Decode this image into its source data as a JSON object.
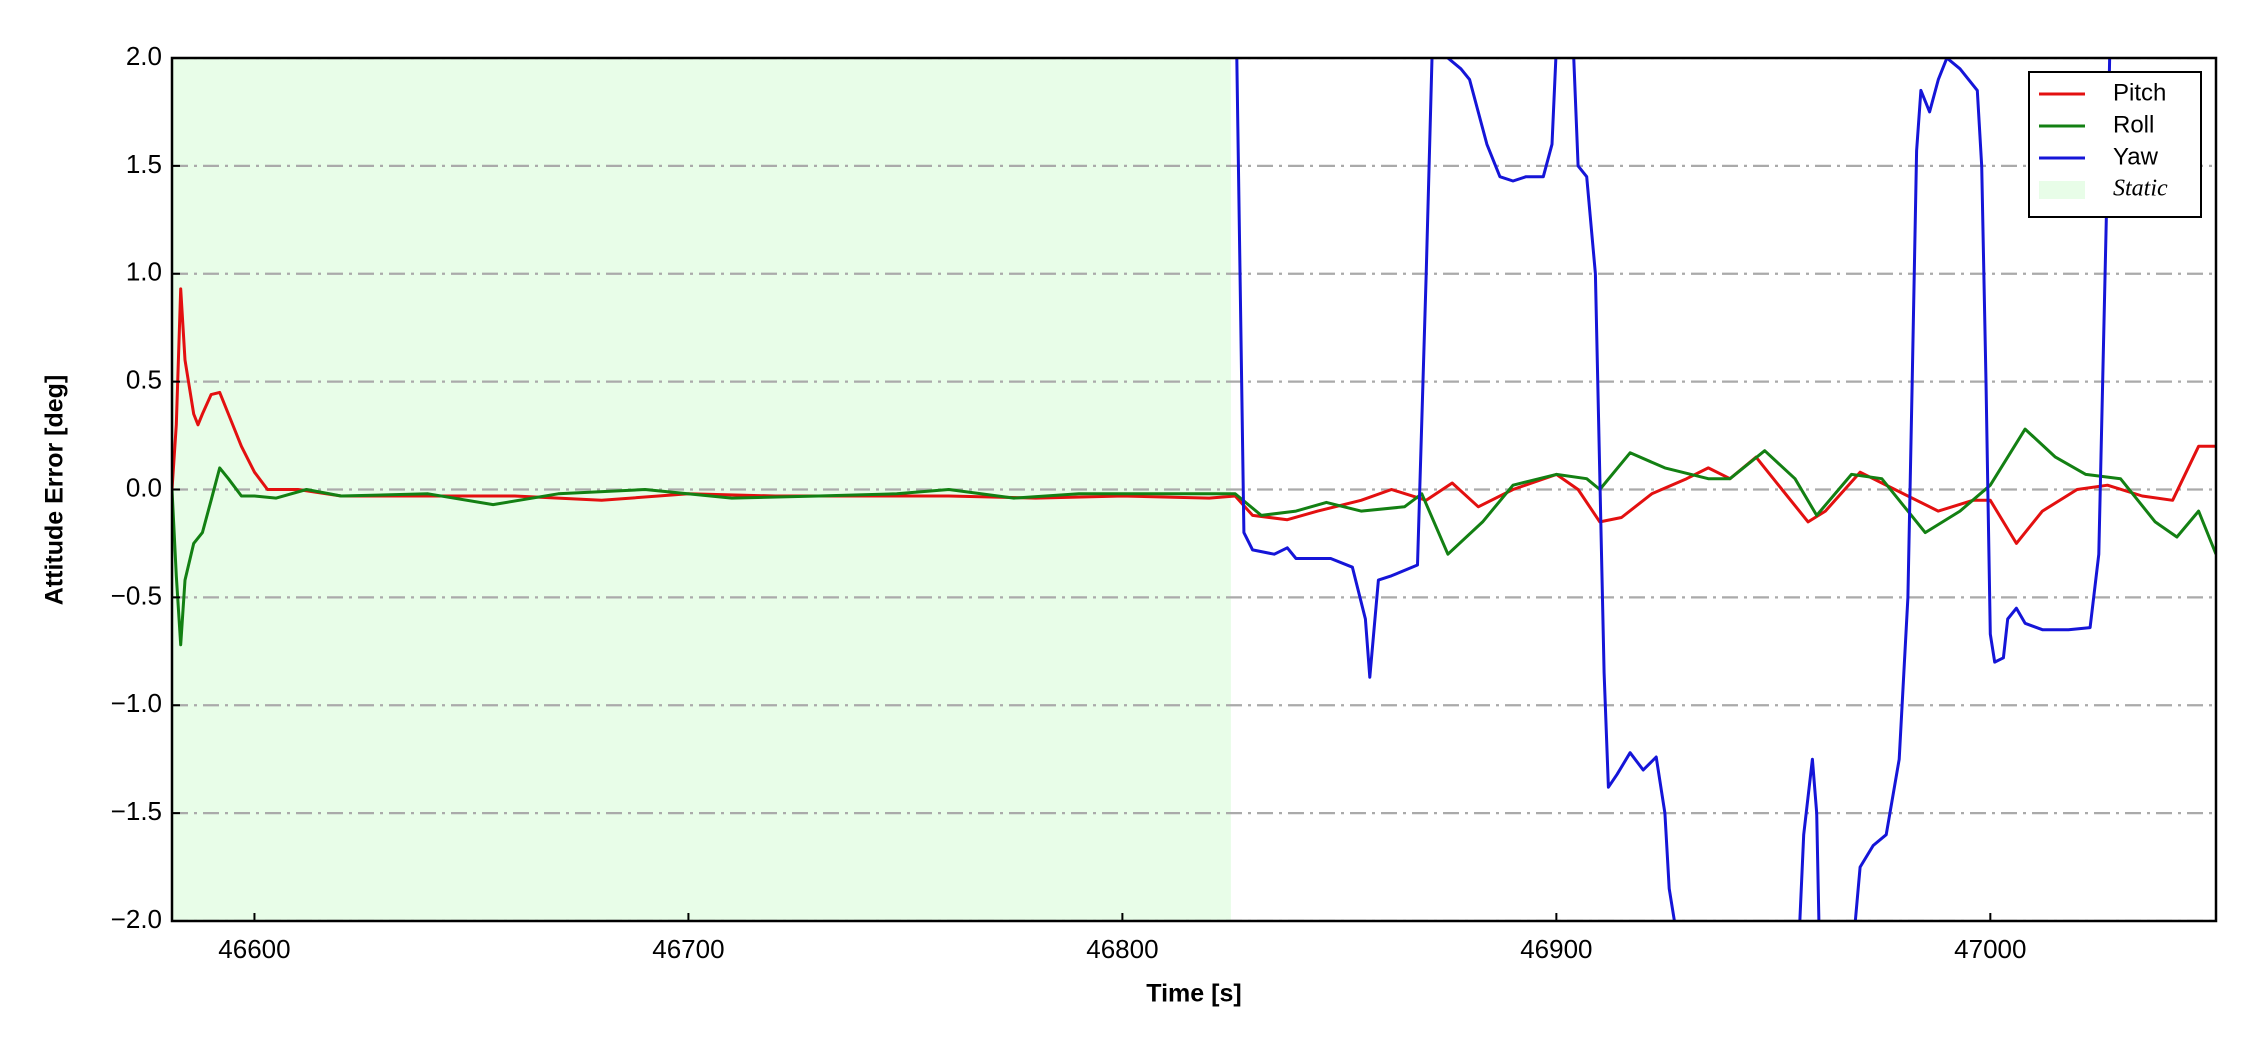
{
  "chart_data": {
    "type": "line",
    "xlabel": "Time [s]",
    "ylabel": "Attitude Error [deg]",
    "xlim": [
      46581,
      47052
    ],
    "ylim": [
      -2,
      2
    ],
    "xticks": [
      46600,
      46700,
      46800,
      46900,
      47000
    ],
    "yticks": [
      {
        "value": -2,
        "label": "−2.0"
      },
      {
        "value": -1.5,
        "label": "−1.5"
      },
      {
        "value": -1,
        "label": "−1.0"
      },
      {
        "value": -0.5,
        "label": "−0.5"
      },
      {
        "value": 0,
        "label": "0.0"
      },
      {
        "value": 0.5,
        "label": "0.5"
      },
      {
        "value": 1,
        "label": "1.0"
      },
      {
        "value": 1.5,
        "label": "1.5"
      },
      {
        "value": 2,
        "label": "2.0"
      }
    ],
    "grid": true,
    "legend": "upper right",
    "static": {
      "label": "Static",
      "range": [
        46581,
        46825
      ],
      "color": "#e8fde8"
    },
    "series": [
      {
        "name": "Pitch",
        "color": "#e31010",
        "x": [
          46581,
          46582,
          46583,
          46584,
          46586,
          46587,
          46588,
          46590,
          46592,
          46594,
          46597,
          46600,
          46603,
          46610,
          46620,
          46640,
          46660,
          46680,
          46700,
          46720,
          46740,
          46760,
          46780,
          46800,
          46820,
          46826,
          46830,
          46838,
          46845,
          46855,
          46862,
          46870,
          46876,
          46882,
          46890,
          46900,
          46905,
          46910,
          46915,
          46922,
          46930,
          46935,
          46940,
          46946,
          46952,
          46958,
          46962,
          46970,
          46978,
          46988,
          46996,
          47000,
          47006,
          47012,
          47020,
          47027,
          47035,
          47042,
          47048,
          47052
        ],
        "values": [
          0,
          0.3,
          0.93,
          0.6,
          0.35,
          0.3,
          0.35,
          0.44,
          0.45,
          0.35,
          0.2,
          0.08,
          0,
          0,
          -0.03,
          -0.03,
          -0.03,
          -0.05,
          -0.02,
          -0.03,
          -0.03,
          -0.03,
          -0.04,
          -0.03,
          -0.04,
          -0.03,
          -0.12,
          -0.14,
          -0.1,
          -0.05,
          0,
          -0.05,
          0.03,
          -0.08,
          0,
          0.07,
          0,
          -0.15,
          -0.13,
          -0.02,
          0.05,
          0.1,
          0.05,
          0.15,
          0,
          -0.15,
          -0.1,
          0.08,
          0,
          -0.1,
          -0.05,
          -0.05,
          -0.25,
          -0.1,
          0,
          0.02,
          -0.03,
          -0.05,
          0.2,
          0.2
        ]
      },
      {
        "name": "Roll",
        "color": "#138013",
        "x": [
          46581,
          46582,
          46583,
          46584,
          46586,
          46588,
          46590,
          46592,
          46594,
          46597,
          46600,
          46605,
          46612,
          46620,
          46640,
          46655,
          46670,
          46690,
          46710,
          46730,
          46748,
          46760,
          46775,
          46790,
          46805,
          46826,
          46832,
          46840,
          46847,
          46855,
          46865,
          46869,
          46875,
          46883,
          46890,
          46900,
          46907,
          46910,
          46917,
          46925,
          46935,
          46940,
          46948,
          46955,
          46960,
          46968,
          46975,
          46985,
          46993,
          47000,
          47008,
          47015,
          47022,
          47030,
          47038,
          47043,
          47048,
          47052
        ],
        "values": [
          0,
          -0.4,
          -0.72,
          -0.42,
          -0.25,
          -0.2,
          -0.05,
          0.1,
          0.05,
          -0.03,
          -0.03,
          -0.04,
          0,
          -0.03,
          -0.02,
          -0.07,
          -0.02,
          0,
          -0.04,
          -0.03,
          -0.02,
          0,
          -0.04,
          -0.02,
          -0.02,
          -0.02,
          -0.12,
          -0.1,
          -0.06,
          -0.1,
          -0.08,
          -0.02,
          -0.3,
          -0.15,
          0.02,
          0.07,
          0.05,
          0,
          0.17,
          0.1,
          0.05,
          0.05,
          0.18,
          0.05,
          -0.12,
          0.07,
          0.05,
          -0.2,
          -0.1,
          0.02,
          0.28,
          0.15,
          0.07,
          0.05,
          -0.15,
          -0.22,
          -0.1,
          -0.3
        ]
      },
      {
        "name": "Yaw",
        "color": "#1515d8",
        "x": [
          46826,
          46828,
          46830,
          46835,
          46838,
          46840,
          46848,
          46853,
          46856,
          46857,
          46859,
          46862,
          46868,
          46870,
          46872,
          46875,
          46878,
          46880,
          46884,
          46887,
          46890,
          46893,
          46897,
          46899,
          46901,
          46903,
          46905,
          46907,
          46909,
          46911,
          46912,
          46914,
          46917,
          46920,
          46923,
          46925,
          46926,
          46928,
          46930,
          46955,
          46957,
          46959,
          46960,
          46961,
          46968,
          46970,
          46973,
          46976,
          46979,
          46981,
          46982,
          46983,
          46984,
          46986,
          46988,
          46990,
          46993,
          46997,
          46998,
          46999,
          47000,
          47001,
          47003,
          47004,
          47006,
          47008,
          47012,
          47018,
          47023,
          47025,
          47027,
          47028
        ],
        "values": [
          2.5,
          -0.2,
          -0.28,
          -0.3,
          -0.27,
          -0.32,
          -0.32,
          -0.36,
          -0.6,
          -0.87,
          -0.42,
          -0.4,
          -0.35,
          1.0,
          2.5,
          2.0,
          1.95,
          1.9,
          1.6,
          1.45,
          1.43,
          1.45,
          1.45,
          1.6,
          2.5,
          2.5,
          1.5,
          1.45,
          1.0,
          -0.85,
          -1.38,
          -1.32,
          -1.22,
          -1.3,
          -1.24,
          -1.5,
          -1.85,
          -2.1,
          -2.5,
          -2.5,
          -1.6,
          -1.25,
          -1.5,
          -2.5,
          -2.2,
          -1.75,
          -1.65,
          -1.6,
          -1.25,
          -0.5,
          0.5,
          1.57,
          1.85,
          1.75,
          1.9,
          2.0,
          1.95,
          1.85,
          1.5,
          0.5,
          -0.67,
          -0.8,
          -0.78,
          -0.6,
          -0.55,
          -0.62,
          -0.65,
          -0.65,
          -0.64,
          -0.3,
          1.5,
          2.5
        ]
      }
    ]
  }
}
